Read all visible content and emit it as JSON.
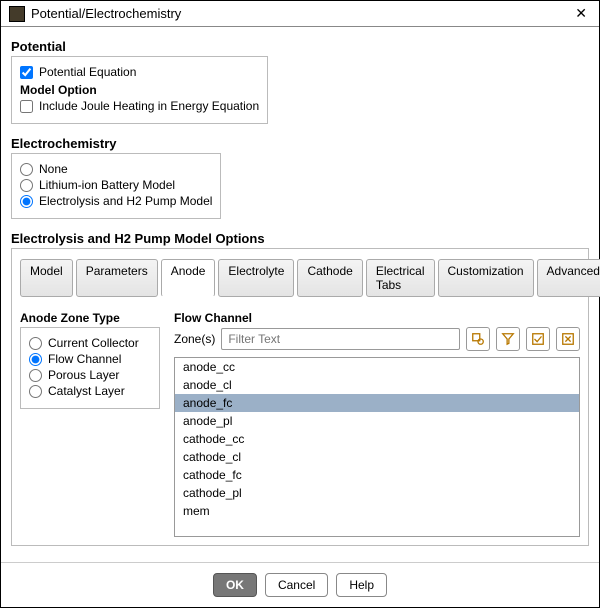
{
  "window": {
    "title": "Potential/Electrochemistry"
  },
  "potential": {
    "heading": "Potential",
    "equation_label": "Potential Equation",
    "equation_checked": true,
    "model_option_heading": "Model Option",
    "joule_label": "Include Joule Heating in Energy Equation",
    "joule_checked": false
  },
  "electrochem": {
    "heading": "Electrochemistry",
    "options": [
      {
        "label": "None",
        "checked": false
      },
      {
        "label": "Lithium-ion Battery Model",
        "checked": false
      },
      {
        "label": "Electrolysis and H2 Pump Model",
        "checked": true
      }
    ]
  },
  "pump": {
    "heading": "Electrolysis and H2 Pump Model Options",
    "tabs": [
      "Model",
      "Parameters",
      "Anode",
      "Electrolyte",
      "Cathode",
      "Electrical Tabs",
      "Customization",
      "Advanced"
    ],
    "active_tab": 2
  },
  "anode_zone": {
    "heading": "Anode Zone Type",
    "options": [
      {
        "label": "Current Collector",
        "checked": false
      },
      {
        "label": "Flow Channel",
        "checked": true
      },
      {
        "label": "Porous Layer",
        "checked": false
      },
      {
        "label": "Catalyst Layer",
        "checked": false
      }
    ]
  },
  "flow_channel": {
    "heading": "Flow Channel",
    "zones_label": "Zone(s)",
    "filter_placeholder": "Filter Text",
    "items": [
      "anode_cc",
      "anode_cl",
      "anode_fc",
      "anode_pl",
      "cathode_cc",
      "cathode_cl",
      "cathode_fc",
      "cathode_pl",
      "mem"
    ],
    "selected_index": 2
  },
  "footer": {
    "ok": "OK",
    "cancel": "Cancel",
    "help": "Help"
  },
  "colors": {
    "selected_bg": "#9bb0c7",
    "border": "#bbb",
    "primary_bg": "#777"
  }
}
